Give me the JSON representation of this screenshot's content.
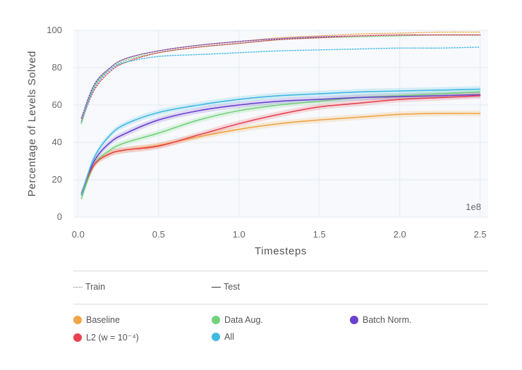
{
  "chart_data": {
    "type": "line",
    "xlabel": "Timesteps",
    "ylabel": "Percentage of Levels Solved",
    "x_multiplier": "1e8",
    "xlim": [
      -0.03,
      2.55
    ],
    "ylim": [
      0,
      100
    ],
    "xticks": [
      "0.0",
      "0.5",
      "1.0",
      "1.5",
      "2.0",
      "2.5"
    ],
    "yticks": [
      "0",
      "20",
      "40",
      "60",
      "80",
      "100"
    ],
    "grid": true,
    "legend_styles": [
      {
        "label": "Train",
        "style": "dotted"
      },
      {
        "label": "Test",
        "style": "solid"
      }
    ],
    "legend_methods": [
      {
        "label": "Baseline",
        "color": "#f0a444"
      },
      {
        "label": "Data Aug.",
        "color": "#72d179"
      },
      {
        "label": "Batch Norm.",
        "color": "#6a41cf"
      },
      {
        "label": "L2 (w = 10⁻⁴)",
        "color": "#e8414f"
      },
      {
        "label": "All",
        "color": "#3eb9e4"
      }
    ],
    "x": [
      0.02,
      0.1,
      0.2,
      0.3,
      0.5,
      0.75,
      1.0,
      1.25,
      1.5,
      1.75,
      2.0,
      2.25,
      2.5
    ],
    "series": [
      {
        "name": "Baseline",
        "color": "#f0a444",
        "split": "test",
        "values": [
          12,
          28,
          34,
          36,
          38.5,
          43,
          47,
          50,
          52,
          53.5,
          55,
          55.5,
          55.5
        ]
      },
      {
        "name": "Data Aug.",
        "color": "#72d179",
        "split": "test",
        "values": [
          10,
          28,
          36,
          40,
          45,
          52,
          57,
          60,
          62,
          64,
          65,
          66,
          67
        ]
      },
      {
        "name": "Batch Norm.",
        "color": "#6a41cf",
        "split": "test",
        "values": [
          12,
          30,
          40,
          45,
          52,
          57,
          60,
          62,
          63,
          64,
          64.5,
          65,
          65.5
        ]
      },
      {
        "name": "L2 (w = 10⁻⁴)",
        "color": "#e8414f",
        "split": "test",
        "values": [
          13,
          28,
          34,
          36,
          38,
          44,
          50,
          55,
          59,
          61,
          63,
          64,
          65
        ]
      },
      {
        "name": "All",
        "color": "#3eb9e4",
        "split": "test",
        "values": [
          12,
          32,
          44,
          50,
          56,
          60,
          63,
          65,
          66,
          67,
          67.5,
          68,
          68.5
        ]
      },
      {
        "name": "Baseline",
        "color": "#f0a444",
        "split": "train",
        "values": [
          52,
          70,
          80,
          85,
          89,
          92,
          94,
          96,
          97,
          98,
          98.5,
          99,
          99
        ]
      },
      {
        "name": "Data Aug.",
        "color": "#72d179",
        "split": "train",
        "values": [
          50,
          70,
          79,
          84,
          88,
          91,
          93,
          95,
          96,
          96.5,
          97,
          97.5,
          97.5
        ]
      },
      {
        "name": "Batch Norm.",
        "color": "#6a41cf",
        "split": "train",
        "values": [
          53,
          71,
          80,
          85,
          89,
          92,
          94,
          95.5,
          96.5,
          97,
          97.5,
          97.5,
          97.5
        ]
      },
      {
        "name": "L2 (w = 10⁻⁴)",
        "color": "#e8414f",
        "split": "train",
        "values": [
          51,
          68,
          78,
          83,
          88,
          91,
          93,
          95,
          96,
          97,
          97.5,
          97.5,
          97.5
        ]
      },
      {
        "name": "All",
        "color": "#3eb9e4",
        "split": "train",
        "values": [
          51,
          69,
          79,
          83,
          86,
          87,
          88,
          89,
          89.5,
          90,
          90.5,
          90.5,
          91
        ]
      }
    ]
  }
}
